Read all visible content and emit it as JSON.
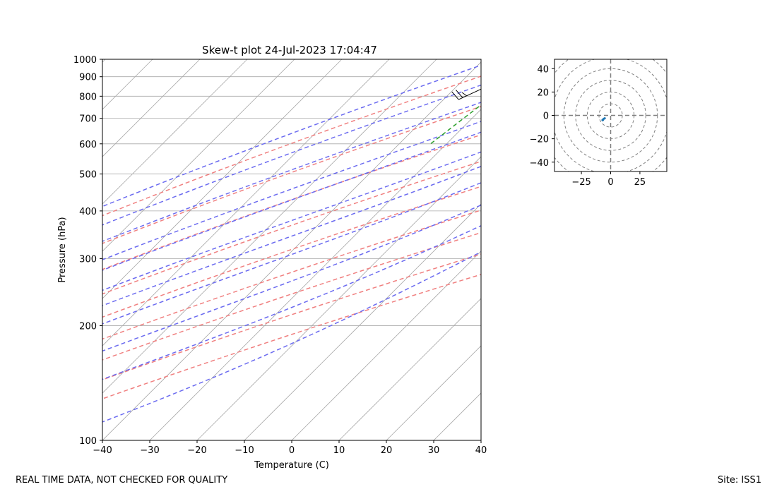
{
  "footer": {
    "left": "REAL TIME DATA, NOT CHECKED FOR QUALITY",
    "right": "Site: ISS1"
  },
  "colors": {
    "dry_adiabat": "#f08080",
    "moist_adiabat": "#6b6bf0",
    "mixing_ratio": "#2ca02c",
    "isotherm": "#a9a9a9",
    "temperature": "#ff0000",
    "dewpoint": "#008000",
    "hodograph": "#1f77b4",
    "range_ring": "#808080"
  },
  "chart_data": [
    {
      "type": "skew-t",
      "title": "Skew-t plot 24-Jul-2023 17:04:47",
      "xlabel": "Temperature (C)",
      "ylabel": "Pressure (hPa)",
      "xlim": [
        -40,
        40
      ],
      "ylim": [
        1000,
        100
      ],
      "x_ticks": [
        -40,
        -30,
        -20,
        -10,
        0,
        10,
        20,
        30,
        40
      ],
      "y_ticks": [
        1000,
        900,
        800,
        700,
        600,
        500,
        400,
        300,
        200,
        100
      ],
      "isotherms": [
        -160,
        -150,
        -140,
        -130,
        -120,
        -110,
        -100,
        -90,
        -80,
        -70,
        -60,
        -50,
        -40,
        -30,
        -20,
        -10,
        0,
        10,
        20,
        30,
        40
      ],
      "dry_adiabats_thetaC": [
        -30,
        -10,
        10,
        30,
        50,
        70,
        90,
        110,
        130
      ],
      "moist_adiabats_startC": [
        -37,
        -25,
        -15,
        -5,
        0,
        8,
        13,
        18,
        24,
        29,
        35
      ],
      "mixing_ratio_lines_startC": [
        -28,
        -17,
        -8,
        0,
        9,
        15,
        20,
        25,
        30,
        35,
        40
      ],
      "mixing_ratio_top_hPa": 600,
      "series": [
        {
          "name": "Temperature",
          "points": [
            [
              26.4,
              835
            ],
            [
              26.9,
              832
            ],
            [
              27.6,
              828
            ],
            [
              28.2,
              825
            ]
          ]
        },
        {
          "name": "Dewpoint",
          "points": [
            [
              13.5,
              830
            ],
            [
              15.5,
              832
            ],
            [
              17.0,
              833
            ],
            [
              19.5,
              838
            ]
          ]
        }
      ],
      "wind_barb": {
        "pressure_hPa": 835,
        "speed_kt": 25,
        "direction_deg": 245
      }
    },
    {
      "type": "hodograph",
      "xlim": [
        -48,
        48
      ],
      "ylim": [
        -48,
        48
      ],
      "x_ticks": [
        -25,
        0,
        25
      ],
      "y_ticks": [
        40,
        20,
        0,
        -20,
        -40
      ],
      "ring_radii": [
        10,
        20,
        30,
        40,
        50,
        60
      ],
      "series": [
        {
          "name": "Wind",
          "points": [
            [
              -6.5,
              -4
            ],
            [
              -7.5,
              -4.5
            ],
            [
              -6,
              -3
            ],
            [
              -5,
              -2.5
            ]
          ]
        }
      ]
    }
  ]
}
